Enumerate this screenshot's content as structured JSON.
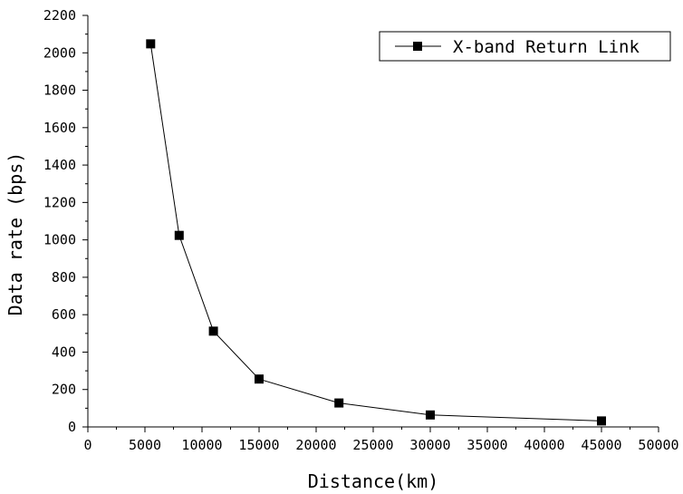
{
  "chart_data": {
    "type": "line",
    "title": "",
    "xlabel": "Distance(km)",
    "ylabel": "Data rate (bps)",
    "xlim": [
      0,
      50000
    ],
    "ylim": [
      0,
      2200
    ],
    "x_ticks": [
      0,
      5000,
      10000,
      15000,
      20000,
      25000,
      30000,
      35000,
      40000,
      45000,
      50000
    ],
    "y_ticks": [
      0,
      200,
      400,
      600,
      800,
      1000,
      1200,
      1400,
      1600,
      1800,
      2000,
      2200
    ],
    "grid": false,
    "legend_position": "top-right",
    "series": [
      {
        "name": "X-band Return Link",
        "marker": "square",
        "color": "#000000",
        "x": [
          5500,
          8000,
          11000,
          15000,
          22000,
          30000,
          45000
        ],
        "y": [
          2048,
          1024,
          512,
          256,
          128,
          64,
          32
        ]
      }
    ]
  }
}
